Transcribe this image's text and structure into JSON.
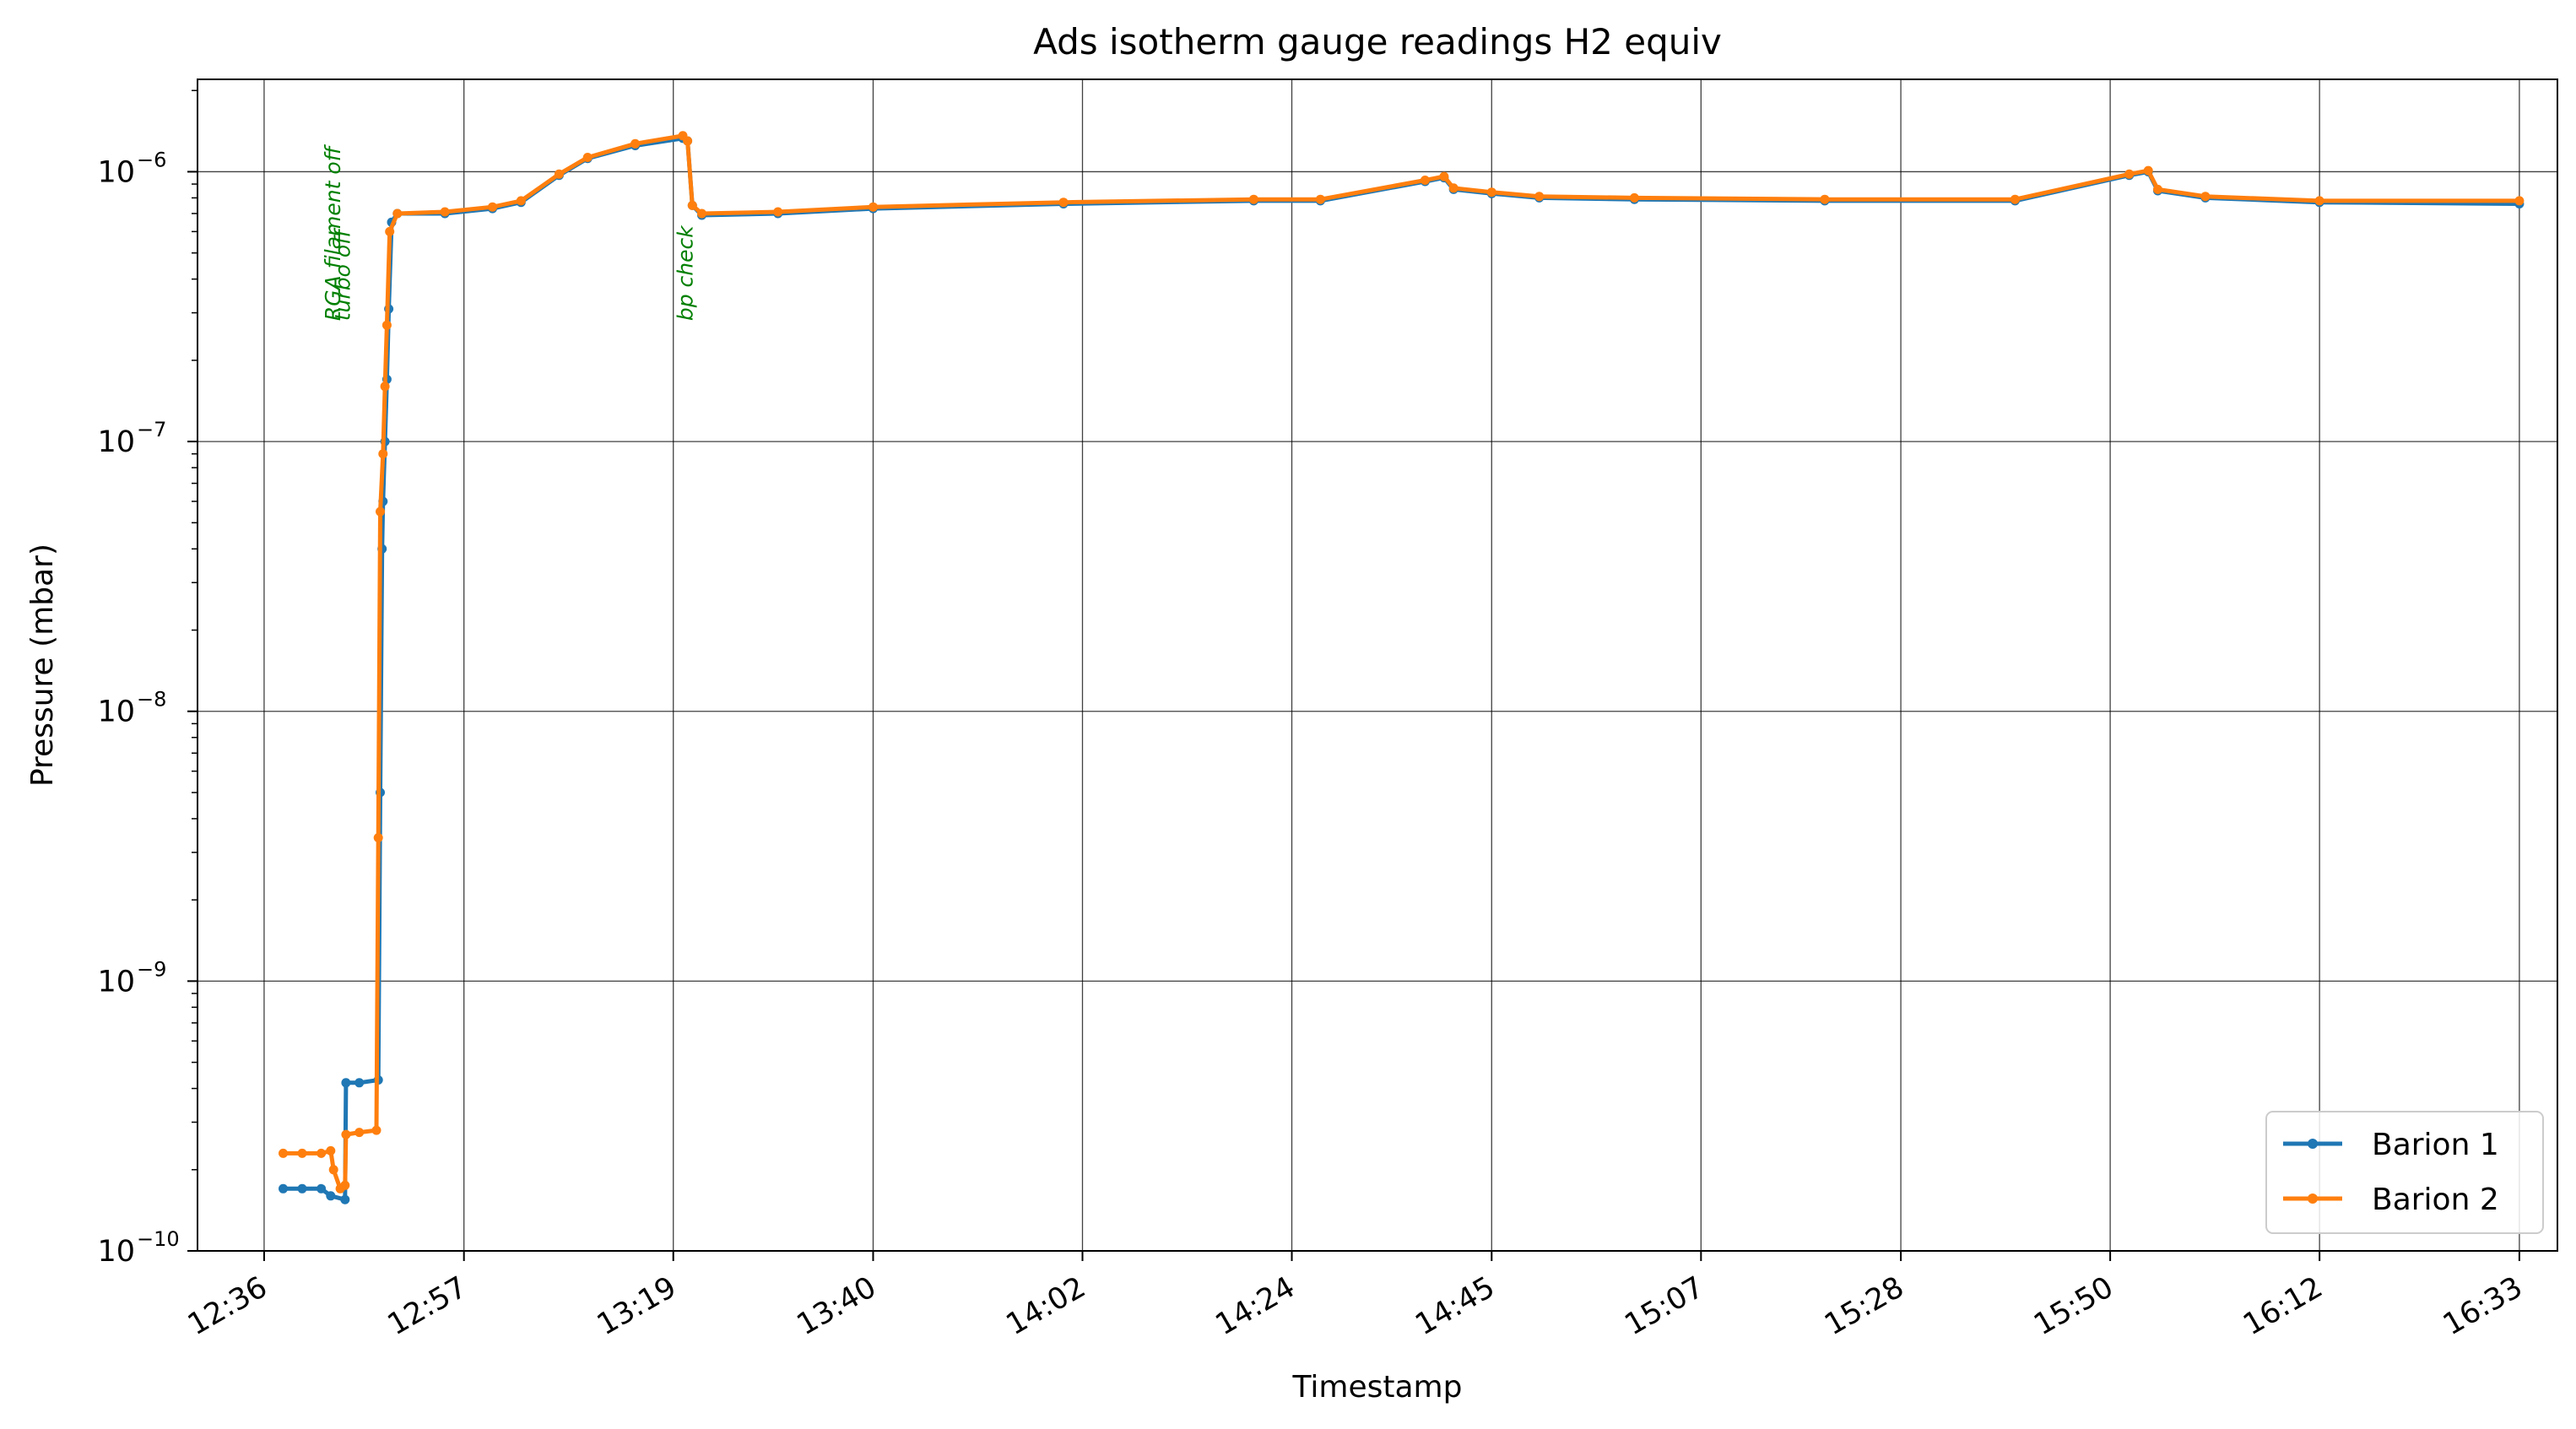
{
  "chart_data": {
    "type": "line",
    "title": "Ads isotherm gauge readings H2 equiv",
    "xlabel": "Timestamp",
    "ylabel": "Pressure (mbar)",
    "yscale": "log",
    "xlim": [
      "12:29",
      "16:37"
    ],
    "ylim": [
      1e-10,
      2.2e-06
    ],
    "grid": true,
    "legend_position": "lower-right",
    "x_ticks": [
      "12:36",
      "12:57",
      "13:19",
      "13:40",
      "14:02",
      "14:24",
      "14:45",
      "15:07",
      "15:28",
      "15:50",
      "16:12",
      "16:33"
    ],
    "y_ticks": [
      {
        "value": 1e-10,
        "base": "10",
        "exp": "−10"
      },
      {
        "value": 1e-09,
        "base": "10",
        "exp": "−9"
      },
      {
        "value": 1e-08,
        "base": "10",
        "exp": "−8"
      },
      {
        "value": 1e-07,
        "base": "10",
        "exp": "−7"
      },
      {
        "value": 1e-06,
        "base": "10",
        "exp": "−6"
      }
    ],
    "annotations": [
      {
        "text": "RGA filament off",
        "x": "12:44",
        "y": 2.8e-07,
        "color": "#008000"
      },
      {
        "text": "turbo off",
        "x": "12:45",
        "y": 2.8e-07,
        "color": "#008000"
      },
      {
        "text": "bp check",
        "x": "13:21",
        "y": 2.8e-07,
        "color": "#008000"
      }
    ],
    "series": [
      {
        "name": "Barion 1",
        "color": "#1f77b4",
        "points": [
          [
            "12:38",
            1.7e-10
          ],
          [
            "12:40",
            1.7e-10
          ],
          [
            "12:42",
            1.7e-10
          ],
          [
            "12:43",
            1.6e-10
          ],
          [
            "12:44.5",
            1.55e-10
          ],
          [
            "12:44.6",
            4.2e-10
          ],
          [
            "12:46",
            4.2e-10
          ],
          [
            "12:48",
            4.3e-10
          ],
          [
            "12:48.2",
            5e-09
          ],
          [
            "12:48.4",
            4e-08
          ],
          [
            "12:48.5",
            6e-08
          ],
          [
            "12:48.7",
            1e-07
          ],
          [
            "12:48.9",
            1.7e-07
          ],
          [
            "12:49.1",
            3.1e-07
          ],
          [
            "12:49.4",
            6.5e-07
          ],
          [
            "12:50",
            7e-07
          ],
          [
            "12:55",
            7e-07
          ],
          [
            "13:00",
            7.3e-07
          ],
          [
            "13:03",
            7.7e-07
          ],
          [
            "13:07",
            9.7e-07
          ],
          [
            "13:10",
            1.12e-06
          ],
          [
            "13:15",
            1.25e-06
          ],
          [
            "13:20",
            1.33e-06
          ],
          [
            "13:20.5",
            1.3e-06
          ],
          [
            "13:21",
            7.5e-07
          ],
          [
            "13:22",
            6.9e-07
          ],
          [
            "13:30",
            7e-07
          ],
          [
            "13:40",
            7.3e-07
          ],
          [
            "14:00",
            7.6e-07
          ],
          [
            "14:20",
            7.8e-07
          ],
          [
            "14:27",
            7.8e-07
          ],
          [
            "14:38",
            9.2e-07
          ],
          [
            "14:40",
            9.5e-07
          ],
          [
            "14:41",
            8.6e-07
          ],
          [
            "14:45",
            8.3e-07
          ],
          [
            "14:50",
            8e-07
          ],
          [
            "15:00",
            7.9e-07
          ],
          [
            "15:20",
            7.8e-07
          ],
          [
            "15:40",
            7.8e-07
          ],
          [
            "15:52",
            9.7e-07
          ],
          [
            "15:54",
            1e-06
          ],
          [
            "15:55",
            8.5e-07
          ],
          [
            "16:00",
            8e-07
          ],
          [
            "16:12",
            7.7e-07
          ],
          [
            "16:33",
            7.6e-07
          ]
        ]
      },
      {
        "name": "Barion 2",
        "color": "#ff7f0e",
        "points": [
          [
            "12:38",
            2.3e-10
          ],
          [
            "12:40",
            2.3e-10
          ],
          [
            "12:42",
            2.3e-10
          ],
          [
            "12:43",
            2.35e-10
          ],
          [
            "12:43.3",
            2e-10
          ],
          [
            "12:44",
            1.7e-10
          ],
          [
            "12:44.5",
            1.75e-10
          ],
          [
            "12:44.6",
            2.7e-10
          ],
          [
            "12:46",
            2.75e-10
          ],
          [
            "12:47.8",
            2.8e-10
          ],
          [
            "12:48",
            3.4e-09
          ],
          [
            "12:48.2",
            5.5e-08
          ],
          [
            "12:48.5",
            9e-08
          ],
          [
            "12:48.7",
            1.6e-07
          ],
          [
            "12:48.9",
            2.7e-07
          ],
          [
            "12:49.2",
            6e-07
          ],
          [
            "12:50",
            7e-07
          ],
          [
            "12:55",
            7.1e-07
          ],
          [
            "13:00",
            7.4e-07
          ],
          [
            "13:03",
            7.8e-07
          ],
          [
            "13:07",
            9.8e-07
          ],
          [
            "13:10",
            1.13e-06
          ],
          [
            "13:15",
            1.27e-06
          ],
          [
            "13:20",
            1.36e-06
          ],
          [
            "13:20.5",
            1.3e-06
          ],
          [
            "13:21",
            7.5e-07
          ],
          [
            "13:22",
            7e-07
          ],
          [
            "13:30",
            7.1e-07
          ],
          [
            "13:40",
            7.4e-07
          ],
          [
            "14:00",
            7.7e-07
          ],
          [
            "14:20",
            7.9e-07
          ],
          [
            "14:27",
            7.9e-07
          ],
          [
            "14:38",
            9.3e-07
          ],
          [
            "14:40",
            9.6e-07
          ],
          [
            "14:41",
            8.7e-07
          ],
          [
            "14:45",
            8.4e-07
          ],
          [
            "14:50",
            8.1e-07
          ],
          [
            "15:00",
            8e-07
          ],
          [
            "15:20",
            7.9e-07
          ],
          [
            "15:40",
            7.9e-07
          ],
          [
            "15:52",
            9.8e-07
          ],
          [
            "15:54",
            1.01e-06
          ],
          [
            "15:55",
            8.6e-07
          ],
          [
            "16:00",
            8.1e-07
          ],
          [
            "16:12",
            7.8e-07
          ],
          [
            "16:33",
            7.8e-07
          ]
        ]
      }
    ]
  }
}
